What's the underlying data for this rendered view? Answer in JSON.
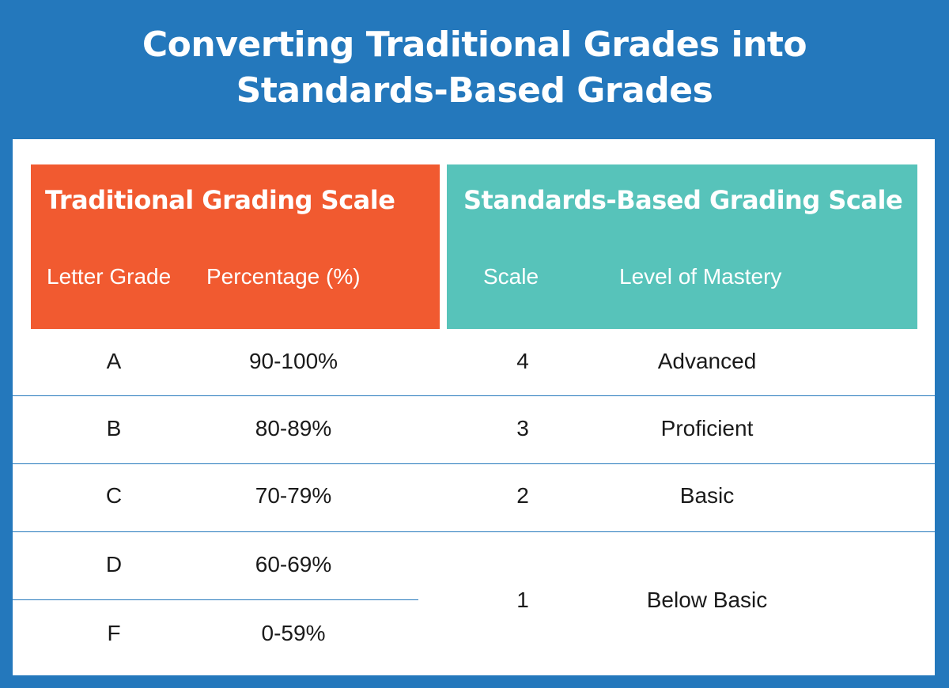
{
  "title": {
    "line1": "Converting Traditional Grades into",
    "line2": "Standards-Based Grades"
  },
  "traditional": {
    "heading": "Traditional Grading Scale",
    "col_letter": "Letter Grade",
    "col_percent": "Percentage (%)",
    "rows": [
      {
        "letter": "A",
        "percent": "90-100%"
      },
      {
        "letter": "B",
        "percent": "80-89%"
      },
      {
        "letter": "C",
        "percent": "70-79%"
      },
      {
        "letter": "D",
        "percent": "60-69%"
      },
      {
        "letter": "F",
        "percent": "0-59%"
      }
    ]
  },
  "standards": {
    "heading": "Standards-Based Grading Scale",
    "col_scale": "Scale",
    "col_mastery": "Level of Mastery",
    "rows": [
      {
        "scale": "4",
        "mastery": "Advanced"
      },
      {
        "scale": "3",
        "mastery": "Proficient"
      },
      {
        "scale": "2",
        "mastery": "Basic"
      },
      {
        "scale": "1",
        "mastery": "Below Basic"
      }
    ]
  },
  "colors": {
    "background": "#2478bc",
    "traditional_header": "#f15a30",
    "standards_header": "#57c3ba",
    "card": "#ffffff"
  }
}
